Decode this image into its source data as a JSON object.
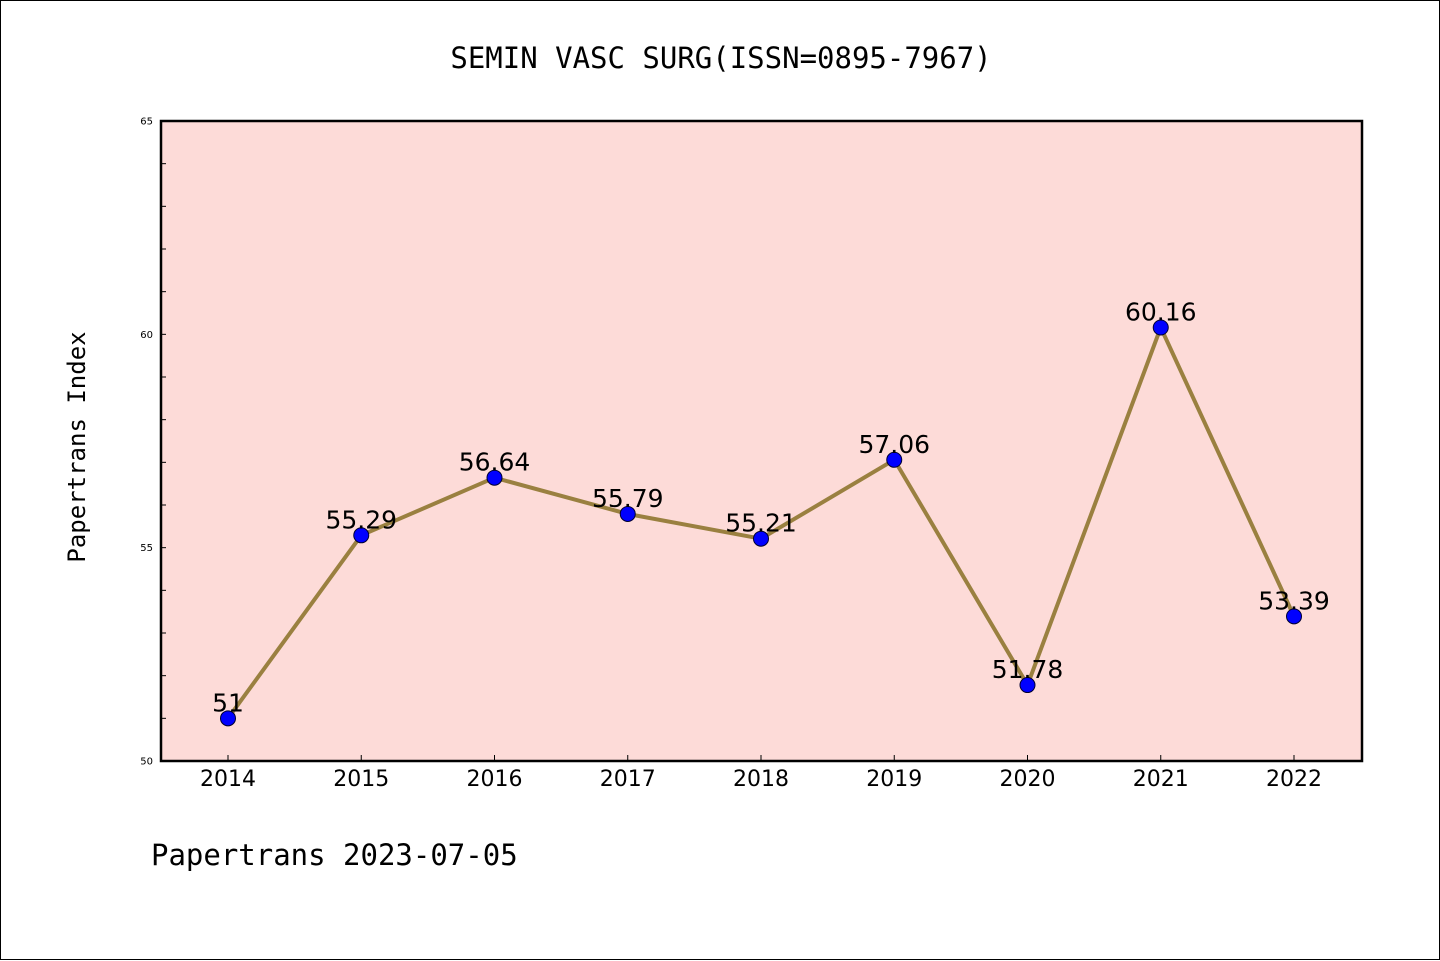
{
  "chart_data": {
    "type": "line",
    "title": "SEMIN VASC SURG(ISSN=0895-7967)",
    "ylabel": "Papertrans Index",
    "xlabel": "",
    "categories": [
      "2014",
      "2015",
      "2016",
      "2017",
      "2018",
      "2019",
      "2020",
      "2021",
      "2022"
    ],
    "values": [
      51,
      55.29,
      56.64,
      55.79,
      55.21,
      57.06,
      51.78,
      60.16,
      53.39
    ],
    "data_labels": [
      "51",
      "55.29",
      "56.64",
      "55.79",
      "55.21",
      "57.06",
      "51.78",
      "60.16",
      "53.39"
    ],
    "ylim": [
      50,
      65
    ],
    "y_ticks": [
      "50",
      "55",
      "60",
      "65"
    ],
    "grid": false,
    "line_color": "#9a8040",
    "marker_color": "#0000ff",
    "plot_background": "#fddbd8"
  },
  "footer": "Papertrans 2023-07-05"
}
